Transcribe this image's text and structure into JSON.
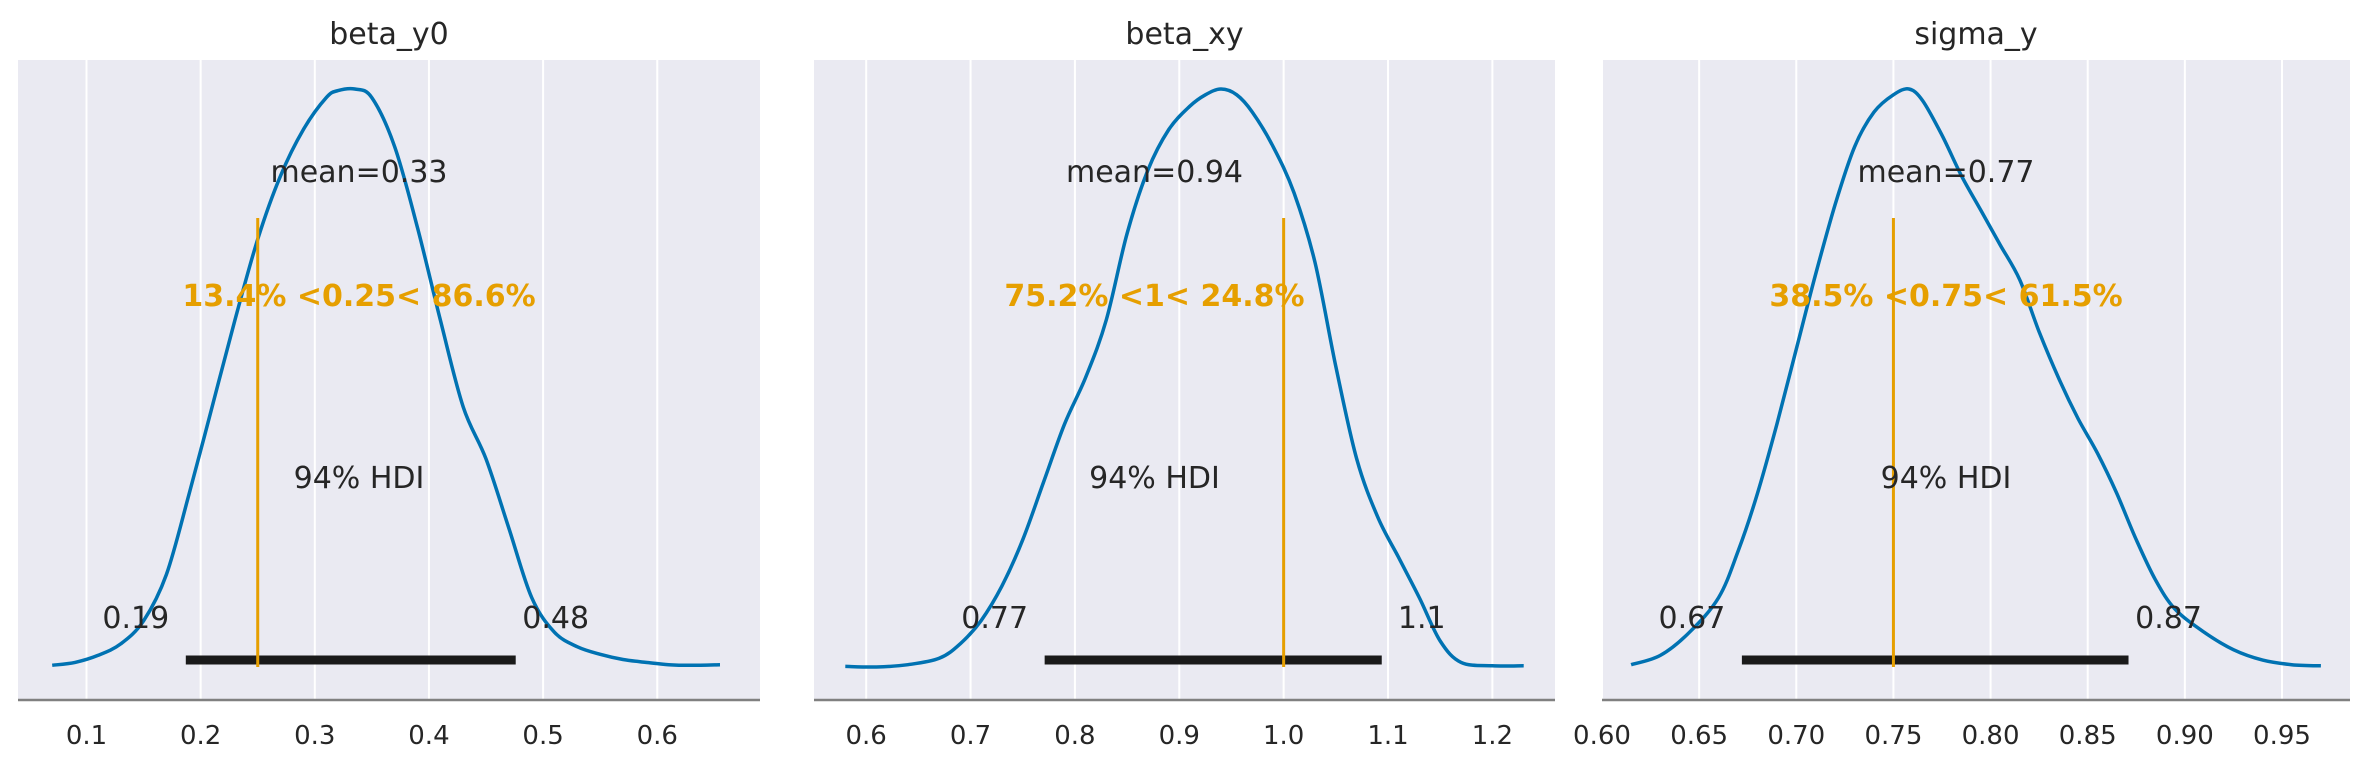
{
  "colors": {
    "density": "#0072b2",
    "reference": "#e69f00",
    "hdi": "#1a1a1a",
    "panel_background": "#eaeaf2"
  },
  "chart_data": [
    {
      "type": "area",
      "title": "beta_y0",
      "xlim": [
        0.04,
        0.69
      ],
      "ticks": [
        0.1,
        0.2,
        0.3,
        0.4,
        0.5,
        0.6
      ],
      "tick_labels": [
        "0.1",
        "0.2",
        "0.3",
        "0.4",
        "0.5",
        "0.6"
      ],
      "grid": true,
      "density": {
        "x": [
          0.07,
          0.09,
          0.11,
          0.13,
          0.15,
          0.17,
          0.19,
          0.21,
          0.23,
          0.25,
          0.27,
          0.29,
          0.31,
          0.32,
          0.335,
          0.35,
          0.37,
          0.39,
          0.41,
          0.43,
          0.45,
          0.47,
          0.49,
          0.51,
          0.53,
          0.55,
          0.57,
          0.59,
          0.61,
          0.63,
          0.655
        ],
        "y": [
          0.003,
          0.008,
          0.02,
          0.04,
          0.08,
          0.16,
          0.3,
          0.45,
          0.6,
          0.74,
          0.85,
          0.93,
          0.985,
          0.997,
          1.0,
          0.985,
          0.9,
          0.76,
          0.6,
          0.45,
          0.36,
          0.24,
          0.12,
          0.06,
          0.035,
          0.022,
          0.013,
          0.008,
          0.004,
          0.003,
          0.004
        ]
      },
      "mean_label": "mean=0.33",
      "ref_value": 0.25,
      "ref_label": "13.4% <0.25< 86.6%",
      "hdi_label": "94% HDI",
      "hdi": [
        0.187,
        0.476
      ],
      "hdi_low_label": "0.19",
      "hdi_high_label": "0.48"
    },
    {
      "type": "area",
      "title": "beta_xy",
      "xlim": [
        0.55,
        1.26
      ],
      "ticks": [
        0.6,
        0.7,
        0.8,
        0.9,
        1.0,
        1.1,
        1.2
      ],
      "tick_labels": [
        "0.6",
        "0.7",
        "0.8",
        "0.9",
        "1.0",
        "1.1",
        "1.2"
      ],
      "grid": true,
      "density": {
        "x": [
          0.58,
          0.61,
          0.64,
          0.67,
          0.69,
          0.71,
          0.73,
          0.75,
          0.77,
          0.79,
          0.81,
          0.83,
          0.85,
          0.87,
          0.89,
          0.91,
          0.925,
          0.94,
          0.955,
          0.97,
          0.99,
          1.01,
          1.03,
          1.05,
          1.07,
          1.09,
          1.11,
          1.13,
          1.15,
          1.17,
          1.2,
          1.23
        ],
        "y": [
          0.001,
          0.0,
          0.004,
          0.015,
          0.04,
          0.08,
          0.14,
          0.22,
          0.32,
          0.42,
          0.5,
          0.6,
          0.75,
          0.86,
          0.93,
          0.97,
          0.99,
          1.0,
          0.99,
          0.96,
          0.9,
          0.82,
          0.7,
          0.52,
          0.36,
          0.26,
          0.19,
          0.12,
          0.045,
          0.008,
          0.002,
          0.002
        ]
      },
      "mean_label": "mean=0.94",
      "ref_value": 1.0,
      "ref_label": "75.2% <1< 24.8%",
      "hdi_label": "94% HDI",
      "hdi": [
        0.771,
        1.094
      ],
      "hdi_low_label": "0.77",
      "hdi_high_label": "1.1"
    },
    {
      "type": "area",
      "title": "sigma_y",
      "xlim": [
        0.6,
        0.985
      ],
      "ticks": [
        0.6,
        0.65,
        0.7,
        0.75,
        0.8,
        0.85,
        0.9,
        0.95
      ],
      "tick_labels": [
        "0.60",
        "0.65",
        "0.70",
        "0.75",
        "0.80",
        "0.85",
        "0.90",
        "0.95"
      ],
      "grid": true,
      "density": {
        "x": [
          0.615,
          0.63,
          0.645,
          0.66,
          0.67,
          0.68,
          0.69,
          0.7,
          0.71,
          0.72,
          0.73,
          0.74,
          0.75,
          0.758,
          0.765,
          0.775,
          0.785,
          0.795,
          0.805,
          0.815,
          0.825,
          0.835,
          0.845,
          0.855,
          0.865,
          0.875,
          0.885,
          0.895,
          0.91,
          0.925,
          0.94,
          0.955,
          0.97
        ],
        "y": [
          0.004,
          0.02,
          0.06,
          0.12,
          0.2,
          0.3,
          0.42,
          0.55,
          0.68,
          0.8,
          0.9,
          0.96,
          0.99,
          1.0,
          0.98,
          0.92,
          0.85,
          0.79,
          0.73,
          0.67,
          0.58,
          0.5,
          0.43,
          0.37,
          0.3,
          0.22,
          0.15,
          0.1,
          0.06,
          0.03,
          0.012,
          0.004,
          0.002
        ]
      },
      "mean_label": "mean=0.77",
      "ref_value": 0.75,
      "ref_label": "38.5% <0.75< 61.5%",
      "hdi_label": "94% HDI",
      "hdi": [
        0.672,
        0.871
      ],
      "hdi_low_label": "0.67",
      "hdi_high_label": "0.87"
    }
  ]
}
